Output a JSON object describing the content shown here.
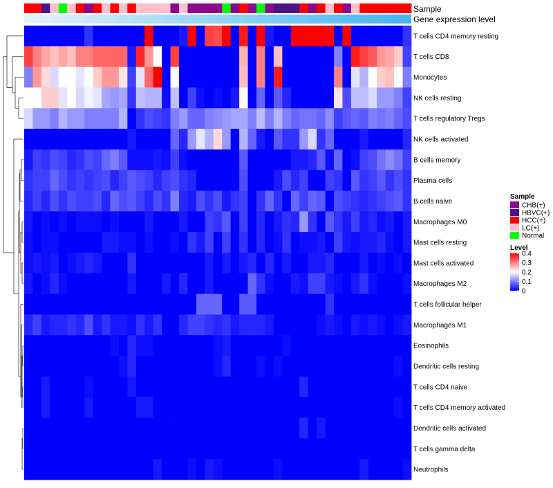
{
  "chart_data": {
    "type": "heatmap",
    "track_labels": [
      "Sample",
      "Gene expression level"
    ],
    "columns": 45,
    "sample_annotation": [
      "HCC(+)",
      "HCC(+)",
      "HBVC(+)",
      "LC(+)",
      "Normal",
      "LC(+)",
      "HCC(+)",
      "CHB(+)",
      "HCC(+)",
      "LC(+)",
      "HCC(+)",
      "LC(+)",
      "HCC(+)",
      "LC(+)",
      "LC(+)",
      "LC(+)",
      "LC(+)",
      "CHB(+)",
      "LC(+)",
      "CHB(+)",
      "CHB(+)",
      "CHB(+)",
      "CHB(+)",
      "Normal",
      "CHB(+)",
      "HCC(+)",
      "CHB(+)",
      "Normal",
      "CHB(+)",
      "HBVC(+)",
      "HBVC(+)",
      "HBVC(+)",
      "HCC(+)",
      "CHB(+)",
      "HCC(+)",
      "LC(+)",
      "HCC(+)",
      "CHB(+)",
      "LC(+)",
      "HCC(+)",
      "HCC(+)",
      "HCC(+)",
      "HCC(+)",
      "HCC(+)",
      "HCC(+)"
    ],
    "rows": [
      {
        "label": "T cells CD4 memory resting",
        "values": [
          0,
          0,
          0,
          0,
          0,
          0,
          0,
          0.04,
          0,
          0,
          0,
          0,
          0,
          0,
          0.4,
          0,
          0,
          0,
          0.02,
          0.4,
          0,
          0.35,
          0.34,
          0.4,
          0,
          0.38,
          0,
          0.4,
          0.02,
          0,
          0,
          0.4,
          0.4,
          0.4,
          0.4,
          0.4,
          0,
          0.4,
          0,
          0,
          0,
          0,
          0,
          0,
          0.04
        ]
      },
      {
        "label": "T cells CD8",
        "values": [
          0.35,
          0.3,
          0.27,
          0.25,
          0.27,
          0.25,
          0.3,
          0.3,
          0.32,
          0.32,
          0.32,
          0.32,
          0.02,
          0.37,
          0.28,
          0.2,
          0,
          0.35,
          0,
          0,
          0,
          0,
          0,
          0,
          0,
          0.26,
          0,
          0.3,
          0,
          0.25,
          0,
          0,
          0,
          0,
          0,
          0,
          0.1,
          0,
          0.38,
          0.35,
          0.33,
          0.28,
          0.27,
          0.24,
          0.05
        ]
      },
      {
        "label": "Monocytes",
        "values": [
          0.1,
          0.28,
          0.23,
          0.17,
          0.2,
          0.2,
          0.18,
          0.2,
          0.24,
          0.28,
          0.28,
          0.22,
          0.05,
          0.18,
          0.32,
          0.4,
          0,
          0.2,
          0,
          0,
          0,
          0,
          0,
          0,
          0,
          0.25,
          0,
          0.3,
          0,
          0.38,
          0,
          0,
          0,
          0,
          0,
          0,
          0.3,
          0,
          0.18,
          0.14,
          0.2,
          0.24,
          0.25,
          0.2,
          0.1
        ]
      },
      {
        "label": "NK cells resting",
        "values": [
          0.2,
          0.2,
          0.24,
          0.24,
          0.18,
          0.2,
          0.17,
          0.19,
          0.18,
          0.13,
          0.12,
          0.13,
          0.04,
          0.15,
          0.14,
          0.14,
          0.01,
          0.15,
          0,
          0.05,
          0.01,
          0,
          0.01,
          0,
          0.02,
          0.2,
          0,
          0.08,
          0,
          0.07,
          0.03,
          0,
          0,
          0,
          0,
          0,
          0.22,
          0.06,
          0.15,
          0.15,
          0.17,
          0.12,
          0.12,
          0.1,
          0.05
        ]
      },
      {
        "label": "T cells regulatory  Tregs",
        "values": [
          0.17,
          0.12,
          0.12,
          0.1,
          0.14,
          0.12,
          0.12,
          0.1,
          0.1,
          0.1,
          0.1,
          0.14,
          0,
          0.04,
          0.06,
          0.05,
          0.04,
          0.1,
          0.12,
          0.08,
          0.08,
          0.1,
          0.11,
          0.12,
          0.13,
          0.13,
          0.1,
          0.15,
          0.1,
          0.14,
          0.1,
          0.08,
          0.09,
          0.09,
          0.08,
          0.11,
          0.05,
          0.07,
          0.08,
          0.07,
          0.1,
          0.09,
          0.1,
          0.08,
          0.06
        ]
      },
      {
        "label": "NK cells activated",
        "values": [
          0,
          0,
          0,
          0,
          0,
          0,
          0,
          0,
          0,
          0,
          0,
          0,
          0.02,
          0,
          0,
          0,
          0,
          0.08,
          0.03,
          0.12,
          0.18,
          0.14,
          0.23,
          0.12,
          0,
          0.14,
          0.08,
          0.02,
          0,
          0.07,
          0.04,
          0.04,
          0.12,
          0.17,
          0.04,
          0.08,
          0,
          0,
          0,
          0.02,
          0,
          0,
          0,
          0,
          0.03
        ]
      },
      {
        "label": "B cells memory",
        "values": [
          0.02,
          0.05,
          0.04,
          0.06,
          0.05,
          0.03,
          0.04,
          0.06,
          0.05,
          0.08,
          0.1,
          0.07,
          0.01,
          0.01,
          0.01,
          0.02,
          0.01,
          0.05,
          0.01,
          0,
          0,
          0,
          0,
          0,
          0,
          0.07,
          0,
          0,
          0,
          0,
          0,
          0.02,
          0.02,
          0.03,
          0.07,
          0.01,
          0.08,
          0,
          0.01,
          0.05,
          0.06,
          0.09,
          0.11,
          0.09,
          0.05
        ]
      },
      {
        "label": "Plasma cells",
        "values": [
          0.04,
          0.05,
          0.05,
          0.08,
          0.06,
          0.04,
          0.05,
          0.04,
          0.05,
          0.06,
          0.03,
          0.05,
          0.07,
          0.06,
          0.05,
          0.03,
          0.05,
          0.06,
          0.04,
          0.03,
          0,
          0,
          0,
          0,
          0,
          0.06,
          0,
          0,
          0,
          0.02,
          0.06,
          0.03,
          0.05,
          0,
          0,
          0.05,
          0.04,
          0,
          0.07,
          0.04,
          0.05,
          0.07,
          0.04,
          0.06,
          0.04
        ]
      },
      {
        "label": "B cells naive",
        "values": [
          0.03,
          0.05,
          0.03,
          0.06,
          0.04,
          0.06,
          0.05,
          0.05,
          0.06,
          0.03,
          0.08,
          0.06,
          0.07,
          0.05,
          0.03,
          0.06,
          0.04,
          0.1,
          0.03,
          0.02,
          0.06,
          0.04,
          0.06,
          0.02,
          0.04,
          0.05,
          0,
          0.04,
          0.08,
          0.04,
          0,
          0.08,
          0.05,
          0.08,
          0.07,
          0,
          0.06,
          0.05,
          0.04,
          0.03,
          0.04,
          0.05,
          0.06,
          0.07,
          0.04
        ]
      },
      {
        "label": "Macrophages M0",
        "values": [
          0.02,
          0,
          0.01,
          0,
          0.01,
          0,
          0.01,
          0.01,
          0.01,
          0,
          0.01,
          0,
          0,
          0,
          0.02,
          0,
          0,
          0,
          0.02,
          0,
          0,
          0.05,
          0.04,
          0.07,
          0,
          0.05,
          0,
          0.03,
          0,
          0.02,
          0.04,
          0.03,
          0.12,
          0.04,
          0,
          0.07,
          0.04,
          0.02,
          0.05,
          0.02,
          0.03,
          0.01,
          0.02,
          0,
          0.02
        ]
      },
      {
        "label": "Mast cells resting",
        "values": [
          0.01,
          0,
          0.01,
          0.01,
          0,
          0,
          0,
          0,
          0,
          0.02,
          0.02,
          0.01,
          0.01,
          0,
          0.01,
          0,
          0,
          0.01,
          0,
          0.04,
          0.02,
          0.05,
          0,
          0.05,
          0,
          0.04,
          0,
          0.03,
          0,
          0.01,
          0.04,
          0,
          0.01,
          0.01,
          0.02,
          0,
          0.05,
          0.02,
          0.01,
          0.02,
          0.02,
          0.03,
          0.01,
          0,
          0.02
        ]
      },
      {
        "label": "Mast cells activated",
        "values": [
          0.01,
          0.02,
          0.01,
          0.02,
          0,
          0.01,
          0.02,
          0.03,
          0.02,
          0,
          0,
          0,
          0.04,
          0,
          0,
          0,
          0,
          0,
          0,
          0,
          0,
          0.02,
          0,
          0.02,
          0,
          0.02,
          0.03,
          0,
          0.03,
          0,
          0.02,
          0,
          0,
          0.02,
          0.02,
          0.03,
          0,
          0,
          0,
          0.02,
          0,
          0.01,
          0,
          0.01,
          0
        ]
      },
      {
        "label": "Macrophages M2",
        "values": [
          0.02,
          0,
          0.01,
          0.03,
          0.01,
          0,
          0,
          0,
          0,
          0,
          0,
          0,
          0.02,
          0,
          0,
          0,
          0.02,
          0,
          0.03,
          0,
          0,
          0.02,
          0,
          0,
          0,
          0,
          0.08,
          0.04,
          0.01,
          0,
          0,
          0.02,
          0.01,
          0.05,
          0.05,
          0.02,
          0.01,
          0,
          0.02,
          0.04,
          0.01,
          0,
          0,
          0,
          0.01
        ]
      },
      {
        "label": "T cells follicular helper",
        "values": [
          0,
          0,
          0,
          0,
          0,
          0,
          0,
          0,
          0,
          0,
          0,
          0,
          0,
          0,
          0,
          0,
          0,
          0,
          0,
          0,
          0.08,
          0.08,
          0.08,
          0,
          0,
          0.07,
          0.07,
          0,
          0,
          0,
          0,
          0,
          0,
          0,
          0,
          0.04,
          0,
          0,
          0,
          0,
          0,
          0,
          0,
          0,
          0
        ]
      },
      {
        "label": "Macrophages M1",
        "values": [
          0.03,
          0.05,
          0.02,
          0.03,
          0.03,
          0.04,
          0.03,
          0.06,
          0.02,
          0.04,
          0.02,
          0.02,
          0.01,
          0.04,
          0.02,
          0.04,
          0,
          0,
          0.03,
          0.05,
          0.05,
          0.04,
          0.03,
          0.04,
          0.02,
          0.03,
          0.03,
          0.03,
          0.02,
          0,
          0,
          0,
          0,
          0,
          0.01,
          0.02,
          0.01,
          0,
          0.02,
          0.01,
          0.02,
          0.01,
          0,
          0.01,
          0.02
        ]
      },
      {
        "label": "Eosinophils",
        "values": [
          0,
          0,
          0,
          0,
          0,
          0,
          0,
          0,
          0,
          0,
          0.01,
          0,
          0.03,
          0.01,
          0.01,
          0,
          0,
          0,
          0,
          0,
          0,
          0,
          0.01,
          0.02,
          0,
          0,
          0,
          0,
          0,
          0,
          0.01,
          0,
          0,
          0,
          0,
          0,
          0,
          0,
          0,
          0,
          0,
          0,
          0,
          0,
          0
        ]
      },
      {
        "label": "Dendritic cells resting",
        "values": [
          0,
          0,
          0,
          0,
          0,
          0,
          0,
          0,
          0,
          0,
          0,
          0.01,
          0.03,
          0,
          0,
          0,
          0,
          0,
          0,
          0,
          0,
          0,
          0.01,
          0.03,
          0,
          0,
          0,
          0.01,
          0,
          0.01,
          0,
          0,
          0,
          0,
          0,
          0,
          0,
          0,
          0,
          0,
          0,
          0,
          0,
          0.01,
          0
        ]
      },
      {
        "label": "T cells CD4 naive",
        "values": [
          0,
          0,
          0.02,
          0,
          0,
          0,
          0,
          0.01,
          0,
          0,
          0,
          0,
          0.02,
          0,
          0,
          0,
          0,
          0,
          0,
          0,
          0,
          0,
          0,
          0,
          0,
          0,
          0,
          0,
          0,
          0,
          0,
          0,
          0.03,
          0,
          0,
          0,
          0,
          0,
          0,
          0,
          0,
          0,
          0,
          0,
          0
        ]
      },
      {
        "label": "T cells CD4 memory activated",
        "values": [
          0,
          0,
          0.02,
          0,
          0,
          0,
          0,
          0.02,
          0,
          0,
          0,
          0,
          0,
          0.02,
          0.02,
          0,
          0,
          0,
          0,
          0,
          0,
          0,
          0,
          0,
          0,
          0,
          0,
          0,
          0,
          0,
          0,
          0,
          0,
          0,
          0,
          0,
          0,
          0,
          0,
          0,
          0,
          0,
          0,
          0.01,
          0
        ]
      },
      {
        "label": "Dendritic cells activated",
        "values": [
          0,
          0,
          0,
          0,
          0,
          0,
          0,
          0,
          0,
          0,
          0,
          0,
          0,
          0,
          0,
          0,
          0,
          0,
          0,
          0,
          0,
          0,
          0,
          0,
          0,
          0,
          0,
          0,
          0,
          0,
          0,
          0,
          0.03,
          0,
          0.02,
          0,
          0,
          0,
          0,
          0,
          0,
          0,
          0,
          0,
          0
        ]
      },
      {
        "label": "T cells gamma delta",
        "values": [
          0,
          0,
          0,
          0,
          0,
          0,
          0,
          0,
          0,
          0,
          0,
          0,
          0,
          0,
          0,
          0,
          0,
          0,
          0,
          0,
          0,
          0,
          0,
          0,
          0,
          0,
          0,
          0,
          0,
          0,
          0,
          0,
          0,
          0,
          0,
          0,
          0,
          0,
          0,
          0,
          0,
          0,
          0,
          0,
          0
        ]
      },
      {
        "label": "Neutrophils",
        "values": [
          0,
          0,
          0,
          0,
          0,
          0,
          0,
          0,
          0,
          0,
          0,
          0,
          0,
          0,
          0,
          0.02,
          0,
          0,
          0,
          0.01,
          0,
          0.02,
          0.01,
          0,
          0,
          0,
          0,
          0,
          0,
          0.01,
          0,
          0,
          0,
          0,
          0,
          0,
          0,
          0,
          0,
          0.02,
          0,
          0,
          0,
          0,
          0.01
        ]
      }
    ],
    "legend_sample": {
      "title": "Sample",
      "entries": [
        {
          "label": "CHB(+)",
          "color": "#8B0A8B"
        },
        {
          "label": "HBVC(+)",
          "color": "#4B1585"
        },
        {
          "label": "HCC(+)",
          "color": "#FF0000"
        },
        {
          "label": "LC(+)",
          "color": "#FFC0CB"
        },
        {
          "label": "Normal",
          "color": "#00FF00"
        }
      ]
    },
    "legend_level": {
      "title": "Level",
      "ticks": [
        "0.4",
        "0.3",
        "0.2",
        "0.1",
        "0"
      ],
      "tick_values": [
        0.4,
        0.3,
        0.2,
        0.1,
        0
      ],
      "range": [
        0,
        0.4
      ],
      "colors": [
        "#0000FF",
        "#FFFFFF",
        "#FF0000"
      ]
    },
    "expression_bar_colors": [
      "#E6F2FA",
      "#42B4F0"
    ]
  }
}
